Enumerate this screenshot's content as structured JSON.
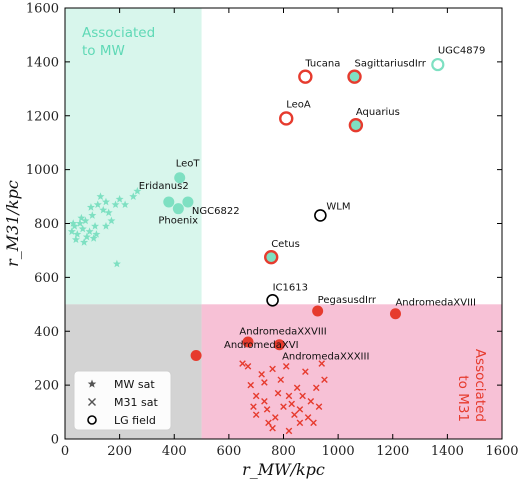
{
  "chart_data": {
    "type": "scatter",
    "xlabel": "r_MW/kpc",
    "ylabel": "r_M31/kpc",
    "xlim": [
      0,
      1600
    ],
    "ylim": [
      0,
      1600
    ],
    "x_ticks": [
      0,
      200,
      400,
      600,
      800,
      1000,
      1200,
      1400,
      1600
    ],
    "y_ticks": [
      0,
      200,
      400,
      600,
      800,
      1000,
      1200,
      1400,
      1600
    ],
    "grid": false,
    "colors": {
      "mw": "#7ee0c2",
      "mw_region": "#d8f6ec",
      "m31": "#e63b2e",
      "m31_region": "#f7c1d6",
      "overlap_region": "#d3d3d3",
      "field": "#000000"
    },
    "regions": [
      {
        "name": "mw",
        "x": [
          0,
          500
        ],
        "y": [
          500,
          1600
        ],
        "label": "Associated to MW"
      },
      {
        "name": "m31",
        "x": [
          500,
          1600
        ],
        "y": [
          0,
          500
        ],
        "label": "Associated to M31"
      },
      {
        "name": "overlap",
        "x": [
          0,
          500
        ],
        "y": [
          0,
          500
        ]
      }
    ],
    "region_label_lines": {
      "mw": [
        "Associated",
        "to MW"
      ],
      "m31": [
        "Associated",
        "to M31"
      ]
    },
    "legend": {
      "placement": "bottom-left",
      "entries": [
        {
          "marker": "star",
          "label": "MW sat"
        },
        {
          "marker": "x",
          "label": "M31 sat"
        },
        {
          "marker": "open-circle",
          "label": "LG field"
        }
      ]
    },
    "mw_satellites": [
      [
        25,
        770
      ],
      [
        35,
        790
      ],
      [
        45,
        760
      ],
      [
        55,
        800
      ],
      [
        65,
        780
      ],
      [
        75,
        810
      ],
      [
        90,
        770
      ],
      [
        100,
        830
      ],
      [
        110,
        790
      ],
      [
        120,
        870
      ],
      [
        130,
        900
      ],
      [
        140,
        850
      ],
      [
        150,
        880
      ],
      [
        160,
        840
      ],
      [
        170,
        810
      ],
      [
        185,
        870
      ],
      [
        200,
        890
      ],
      [
        220,
        870
      ],
      [
        250,
        900
      ],
      [
        265,
        920
      ],
      [
        80,
        750
      ],
      [
        60,
        820
      ],
      [
        40,
        740
      ],
      [
        105,
        745
      ],
      [
        95,
        860
      ],
      [
        150,
        790
      ],
      [
        190,
        650
      ],
      [
        30,
        800
      ],
      [
        70,
        730
      ],
      [
        115,
        760
      ]
    ],
    "m31_satellites": [
      [
        650,
        280
      ],
      [
        670,
        270
      ],
      [
        680,
        200
      ],
      [
        700,
        160
      ],
      [
        720,
        240
      ],
      [
        730,
        140
      ],
      [
        740,
        110
      ],
      [
        745,
        60
      ],
      [
        760,
        260
      ],
      [
        770,
        80
      ],
      [
        780,
        170
      ],
      [
        790,
        220
      ],
      [
        800,
        120
      ],
      [
        810,
        270
      ],
      [
        820,
        160
      ],
      [
        830,
        130
      ],
      [
        840,
        90
      ],
      [
        850,
        190
      ],
      [
        860,
        110
      ],
      [
        870,
        160
      ],
      [
        880,
        250
      ],
      [
        890,
        80
      ],
      [
        900,
        140
      ],
      [
        910,
        60
      ],
      [
        920,
        190
      ],
      [
        930,
        120
      ],
      [
        940,
        280
      ],
      [
        950,
        220
      ],
      [
        760,
        40
      ],
      [
        730,
        210
      ],
      [
        690,
        120
      ],
      [
        820,
        30
      ],
      [
        860,
        60
      ],
      [
        700,
        90
      ]
    ],
    "named_galaxies": [
      {
        "name": "LeoT",
        "x": 420,
        "y": 970,
        "marker": "mw-filled"
      },
      {
        "name": "Eridanus2",
        "x": 380,
        "y": 880,
        "marker": "mw-filled"
      },
      {
        "name": "NGC6822",
        "x": 450,
        "y": 880,
        "marker": "mw-filled"
      },
      {
        "name": "Phoenix",
        "x": 415,
        "y": 855,
        "marker": "mw-filled"
      },
      {
        "name": "UGC4879",
        "x": 1365,
        "y": 1390,
        "marker": "mw-ring"
      },
      {
        "name": "Tucana",
        "x": 880,
        "y": 1345,
        "marker": "m31-ring"
      },
      {
        "name": "SagittariusdIrr",
        "x": 1060,
        "y": 1345,
        "marker": "m31-ring-mw"
      },
      {
        "name": "LeoA",
        "x": 810,
        "y": 1190,
        "marker": "m31-ring"
      },
      {
        "name": "Aquarius",
        "x": 1065,
        "y": 1165,
        "marker": "m31-ring-mw"
      },
      {
        "name": "WLM",
        "x": 935,
        "y": 830,
        "marker": "field"
      },
      {
        "name": "Cetus",
        "x": 755,
        "y": 675,
        "marker": "m31-ring-mw"
      },
      {
        "name": "IC1613",
        "x": 760,
        "y": 515,
        "marker": "field"
      },
      {
        "name": "PegasusdIrr",
        "x": 925,
        "y": 475,
        "marker": "m31-filled"
      },
      {
        "name": "AndromedaXVIII",
        "x": 1210,
        "y": 465,
        "marker": "m31-filled"
      },
      {
        "name": "AndromedaXXVIII",
        "x": 785,
        "y": 350,
        "marker": "m31-filled"
      },
      {
        "name": "AndromedaXVI",
        "x": 670,
        "y": 360,
        "marker": "m31-filled"
      },
      {
        "name": "AndromedaXXXIII",
        "x": 480,
        "y": 310,
        "marker": "m31-filled"
      }
    ]
  }
}
